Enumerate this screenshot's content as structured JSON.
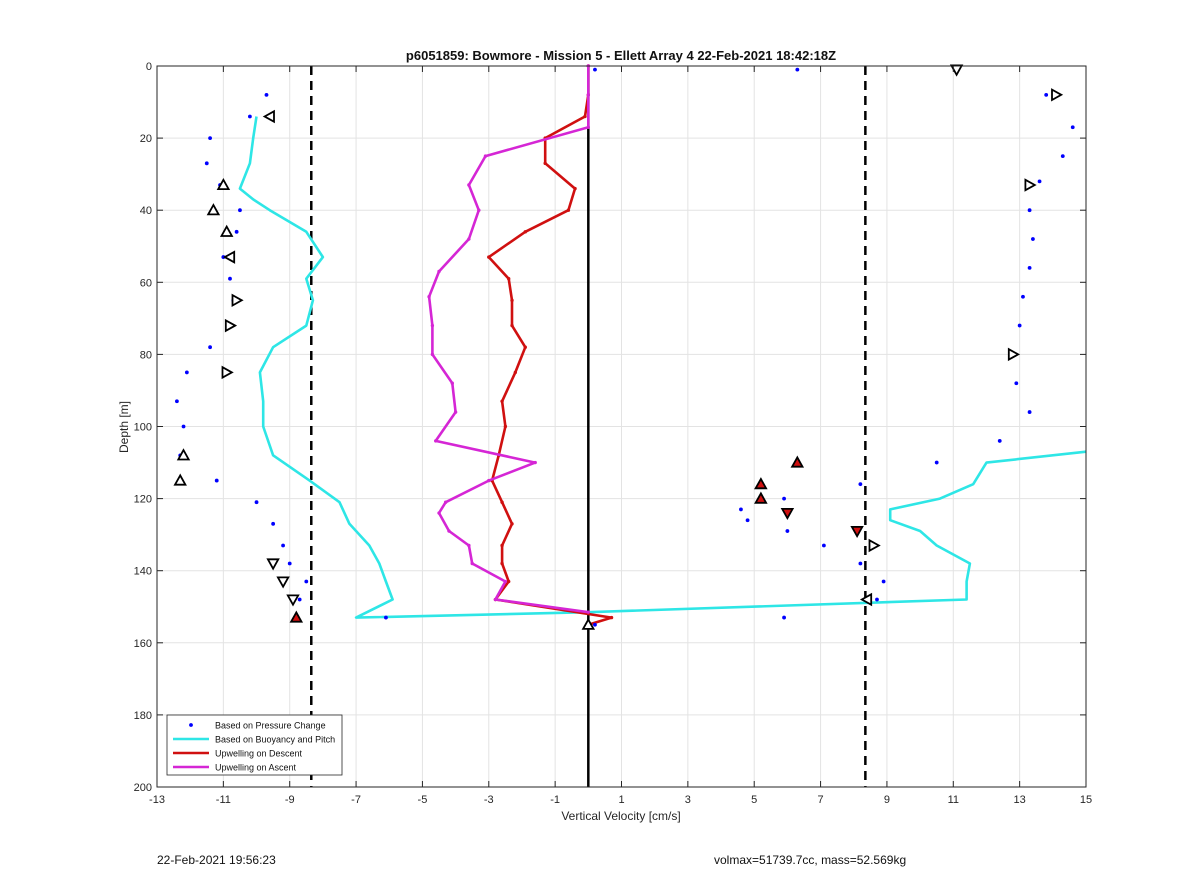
{
  "footer": {
    "timestamp": "22-Feb-2021 19:56:23",
    "info": "volmax=51739.7cc, mass=52.569kg"
  },
  "chart_data": {
    "type": "line",
    "title": "p6051859: Bowmore - Mission 5 - Ellett Array 4 22-Feb-2021 18:42:18Z",
    "xlabel": "Vertical Velocity [cm/s]",
    "ylabel": "Depth [m]",
    "xlim": [
      -13,
      15
    ],
    "ylim": [
      0,
      200
    ],
    "y_reversed": true,
    "xticks": [
      -13,
      -11,
      -9,
      -7,
      -5,
      -3,
      -1,
      1,
      3,
      5,
      7,
      9,
      11,
      13,
      15
    ],
    "yticks": [
      0,
      20,
      40,
      60,
      80,
      100,
      120,
      140,
      160,
      180,
      200
    ],
    "grid": true,
    "legend_position": "bottom-left",
    "colors": {
      "pressure": "#0000ff",
      "buoyancy": "#2ee6e6",
      "descent": "#d01010",
      "ascent": "#d526d5",
      "zero_line": "#000000",
      "dashed_lines": "#000000",
      "markers": "#000000",
      "marker_fill": "#d01010"
    },
    "vertical_lines": {
      "solid": [
        0.0
      ],
      "dashed": [
        -8.35,
        8.35
      ]
    },
    "series": [
      {
        "name": "Based on Pressure Change",
        "style": "dots",
        "points": [
          [
            -9.7,
            8
          ],
          [
            -10.2,
            14
          ],
          [
            -11.4,
            20
          ],
          [
            -11.5,
            27
          ],
          [
            -11.1,
            33
          ],
          [
            -10.5,
            40
          ],
          [
            -10.6,
            46
          ],
          [
            -11.0,
            53
          ],
          [
            -10.8,
            59
          ],
          [
            -10.7,
            65
          ],
          [
            -10.8,
            72
          ],
          [
            -11.4,
            78
          ],
          [
            -12.1,
            85
          ],
          [
            -12.4,
            93
          ],
          [
            -12.2,
            100
          ],
          [
            -12.3,
            108
          ],
          [
            -11.2,
            115
          ],
          [
            -10.0,
            121
          ],
          [
            -9.5,
            127
          ],
          [
            -9.2,
            133
          ],
          [
            -9.0,
            138
          ],
          [
            -8.5,
            143
          ],
          [
            -8.7,
            148
          ],
          [
            -8.8,
            153
          ],
          [
            -6.1,
            153
          ],
          [
            0.2,
            155
          ],
          [
            0.2,
            1
          ],
          [
            6.3,
            1
          ],
          [
            13.8,
            8
          ],
          [
            14.6,
            17
          ],
          [
            14.3,
            25
          ],
          [
            13.6,
            32
          ],
          [
            13.3,
            40
          ],
          [
            13.4,
            48
          ],
          [
            13.3,
            56
          ],
          [
            13.1,
            64
          ],
          [
            13.0,
            72
          ],
          [
            12.8,
            80
          ],
          [
            12.9,
            88
          ],
          [
            13.3,
            96
          ],
          [
            12.4,
            104
          ],
          [
            10.5,
            110
          ],
          [
            6.3,
            110
          ],
          [
            8.2,
            116
          ],
          [
            5.9,
            120
          ],
          [
            4.6,
            123
          ],
          [
            4.8,
            126
          ],
          [
            6.0,
            129
          ],
          [
            7.1,
            133
          ],
          [
            8.2,
            138
          ],
          [
            8.9,
            143
          ],
          [
            8.7,
            148
          ],
          [
            5.9,
            153
          ]
        ]
      },
      {
        "name": "Based on Buoyancy and Pitch",
        "style": "line",
        "segments": [
          [
            [
              -10.0,
              14
            ],
            [
              -10.1,
              20
            ],
            [
              -10.2,
              27
            ],
            [
              -10.5,
              34
            ],
            [
              -10.1,
              37
            ],
            [
              -9.6,
              40
            ],
            [
              -8.5,
              46
            ],
            [
              -8.0,
              53
            ],
            [
              -8.5,
              59
            ],
            [
              -8.3,
              65
            ],
            [
              -8.5,
              72
            ],
            [
              -9.5,
              78
            ],
            [
              -9.9,
              85
            ],
            [
              -9.8,
              93
            ],
            [
              -9.8,
              100
            ],
            [
              -9.5,
              108
            ],
            [
              -8.4,
              115
            ],
            [
              -7.5,
              121
            ],
            [
              -7.2,
              127
            ],
            [
              -6.6,
              133
            ],
            [
              -6.3,
              138
            ],
            [
              -6.1,
              143
            ],
            [
              -5.9,
              148
            ],
            [
              -7.0,
              153
            ],
            [
              0.0,
              151.5
            ],
            [
              11.4,
              148
            ],
            [
              11.4,
              143
            ],
            [
              11.5,
              138
            ],
            [
              10.5,
              133
            ],
            [
              10.0,
              129
            ],
            [
              9.1,
              126
            ],
            [
              9.1,
              123
            ],
            [
              10.6,
              120
            ],
            [
              11.6,
              116
            ],
            [
              12.0,
              110
            ],
            [
              15.0,
              107
            ]
          ]
        ]
      },
      {
        "name": "Upwelling on Descent",
        "style": "line",
        "points": [
          [
            0.0,
            0
          ],
          [
            0.0,
            8
          ],
          [
            -0.1,
            14
          ],
          [
            -1.3,
            20
          ],
          [
            -1.3,
            27
          ],
          [
            -0.4,
            34
          ],
          [
            -0.6,
            40
          ],
          [
            -1.9,
            46
          ],
          [
            -3.0,
            53
          ],
          [
            -2.4,
            59
          ],
          [
            -2.3,
            65
          ],
          [
            -2.3,
            72
          ],
          [
            -1.9,
            78
          ],
          [
            -2.2,
            85
          ],
          [
            -2.6,
            93
          ],
          [
            -2.5,
            100
          ],
          [
            -2.7,
            108
          ],
          [
            -2.9,
            115
          ],
          [
            -2.6,
            121
          ],
          [
            -2.3,
            127
          ],
          [
            -2.6,
            133
          ],
          [
            -2.6,
            138
          ],
          [
            -2.4,
            143
          ],
          [
            -2.8,
            148
          ],
          [
            0.7,
            153
          ],
          [
            0.0,
            155
          ]
        ]
      },
      {
        "name": "Upwelling on Ascent",
        "style": "line",
        "points": [
          [
            0.0,
            0
          ],
          [
            0.0,
            8
          ],
          [
            0.0,
            17
          ],
          [
            -3.1,
            25
          ],
          [
            -3.6,
            33
          ],
          [
            -3.3,
            40
          ],
          [
            -3.6,
            48
          ],
          [
            -4.5,
            57
          ],
          [
            -4.8,
            64
          ],
          [
            -4.7,
            72
          ],
          [
            -4.7,
            80
          ],
          [
            -4.1,
            88
          ],
          [
            -4.0,
            96
          ],
          [
            -4.6,
            104
          ],
          [
            -1.6,
            110
          ],
          [
            -3.0,
            115
          ],
          [
            -4.3,
            121
          ],
          [
            -4.5,
            124
          ],
          [
            -4.2,
            129
          ],
          [
            -3.6,
            133
          ],
          [
            -3.5,
            138
          ],
          [
            -2.5,
            143
          ],
          [
            -2.8,
            148
          ],
          [
            0.0,
            151.5
          ]
        ]
      }
    ],
    "markers": [
      {
        "x": -9.6,
        "y": 14,
        "dir": "left",
        "fill": false
      },
      {
        "x": -11.0,
        "y": 33,
        "dir": "up",
        "fill": false
      },
      {
        "x": -11.3,
        "y": 40,
        "dir": "up",
        "fill": false
      },
      {
        "x": -10.9,
        "y": 46,
        "dir": "up",
        "fill": false
      },
      {
        "x": -10.8,
        "y": 53,
        "dir": "left",
        "fill": false
      },
      {
        "x": -10.6,
        "y": 65,
        "dir": "right",
        "fill": false
      },
      {
        "x": -10.8,
        "y": 72,
        "dir": "right",
        "fill": false
      },
      {
        "x": -10.9,
        "y": 85,
        "dir": "right",
        "fill": false
      },
      {
        "x": -12.2,
        "y": 108,
        "dir": "up",
        "fill": false
      },
      {
        "x": -12.3,
        "y": 115,
        "dir": "up",
        "fill": false
      },
      {
        "x": -9.5,
        "y": 138,
        "dir": "down",
        "fill": false
      },
      {
        "x": -9.2,
        "y": 143,
        "dir": "down",
        "fill": false
      },
      {
        "x": -8.9,
        "y": 148,
        "dir": "down",
        "fill": false
      },
      {
        "x": -8.8,
        "y": 153,
        "dir": "up",
        "fill": true
      },
      {
        "x": 0.0,
        "y": 155,
        "dir": "up",
        "fill": false
      },
      {
        "x": 11.1,
        "y": 1,
        "dir": "down",
        "fill": false
      },
      {
        "x": 14.1,
        "y": 8,
        "dir": "right",
        "fill": false
      },
      {
        "x": 13.3,
        "y": 33,
        "dir": "right",
        "fill": false
      },
      {
        "x": 12.8,
        "y": 80,
        "dir": "right",
        "fill": false
      },
      {
        "x": 6.3,
        "y": 110,
        "dir": "up",
        "fill": true
      },
      {
        "x": 5.2,
        "y": 116,
        "dir": "up",
        "fill": true
      },
      {
        "x": 5.2,
        "y": 120,
        "dir": "up",
        "fill": true
      },
      {
        "x": 6.0,
        "y": 124,
        "dir": "down",
        "fill": true
      },
      {
        "x": 8.1,
        "y": 129,
        "dir": "down",
        "fill": true
      },
      {
        "x": 8.6,
        "y": 133,
        "dir": "right",
        "fill": false
      },
      {
        "x": 8.4,
        "y": 148,
        "dir": "left",
        "fill": false
      }
    ]
  }
}
